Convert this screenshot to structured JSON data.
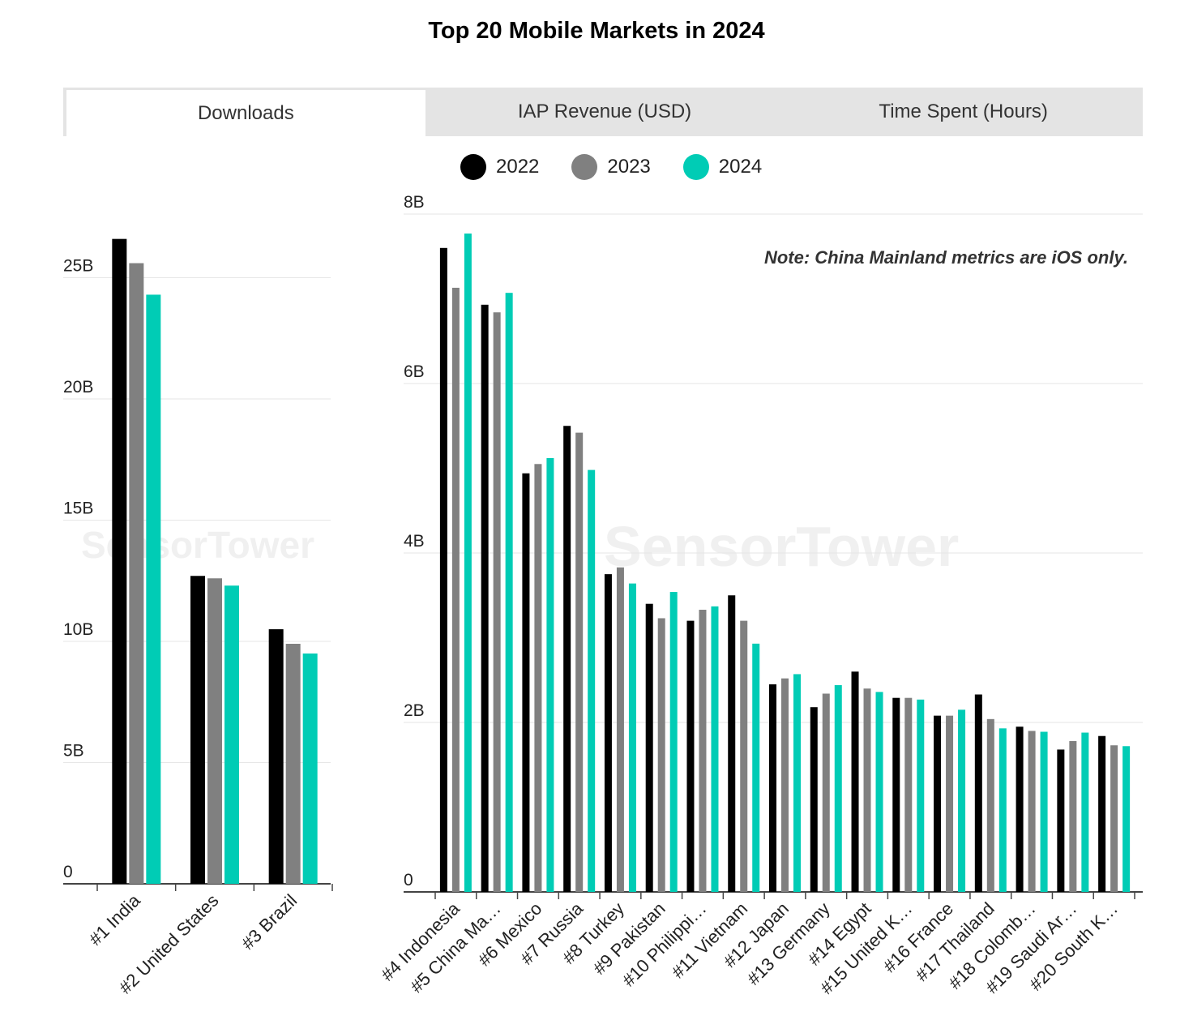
{
  "title": "Top 20 Mobile Markets in 2024",
  "tabs": [
    {
      "label": "Downloads",
      "active": true
    },
    {
      "label": "IAP Revenue (USD)",
      "active": false
    },
    {
      "label": "Time Spent (Hours)",
      "active": false
    }
  ],
  "legend": [
    {
      "label": "2022",
      "color": "#000000"
    },
    {
      "label": "2023",
      "color": "#808080"
    },
    {
      "label": "2024",
      "color": "#00ccb5"
    }
  ],
  "note": "Note: China Mainland metrics are iOS only.",
  "watermark": "SensorTower",
  "chart_data": [
    {
      "type": "bar",
      "categories": [
        "#1 India",
        "#2 United States",
        "#3 Brazil"
      ],
      "series": [
        {
          "name": "2022",
          "values": [
            26.6,
            12.7,
            10.5
          ]
        },
        {
          "name": "2023",
          "values": [
            25.6,
            12.6,
            9.9
          ]
        },
        {
          "name": "2024",
          "values": [
            24.3,
            12.3,
            9.5
          ]
        }
      ],
      "yticks": [
        "0",
        "5B",
        "10B",
        "15B",
        "20B",
        "25B"
      ],
      "ylim": [
        0,
        27.5
      ],
      "grid": true
    },
    {
      "type": "bar",
      "categories": [
        "#4 Indonesia",
        "#5 China Ma…",
        "#6 Mexico",
        "#7 Russia",
        "#8 Turkey",
        "#9 Pakistan",
        "#10 Philippi…",
        "#11 Vietnam",
        "#12 Japan",
        "#13 Germany",
        "#14 Egypt",
        "#15 United K…",
        "#16 France",
        "#17 Thailand",
        "#18 Colomb…",
        "#19 Saudi Ar…",
        "#20 South K…"
      ],
      "series": [
        {
          "name": "2022",
          "values": [
            7.6,
            6.93,
            4.94,
            5.5,
            3.75,
            3.4,
            3.2,
            3.5,
            2.45,
            2.18,
            2.6,
            2.29,
            2.08,
            2.33,
            1.95,
            1.68,
            1.84
          ]
        },
        {
          "name": "2023",
          "values": [
            7.13,
            6.84,
            5.05,
            5.42,
            3.83,
            3.23,
            3.33,
            3.2,
            2.52,
            2.34,
            2.4,
            2.29,
            2.08,
            2.04,
            1.9,
            1.78,
            1.73
          ]
        },
        {
          "name": "2024",
          "values": [
            7.77,
            7.07,
            5.12,
            4.98,
            3.64,
            3.54,
            3.37,
            2.93,
            2.57,
            2.44,
            2.36,
            2.27,
            2.15,
            1.93,
            1.89,
            1.88,
            1.72
          ]
        }
      ],
      "yticks": [
        "0",
        "2B",
        "4B",
        "6B",
        "8B"
      ],
      "ylim": [
        0,
        8
      ],
      "grid": true
    }
  ]
}
